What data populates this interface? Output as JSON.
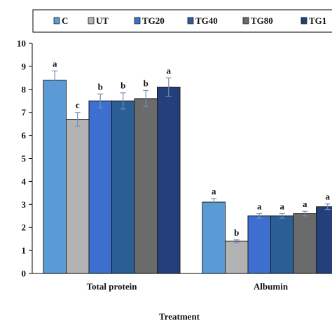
{
  "chart_data": {
    "type": "bar",
    "xlabel": "Treatment",
    "ylabel": "",
    "ylim": [
      0,
      10
    ],
    "yticks": [
      0,
      1,
      2,
      3,
      4,
      5,
      6,
      7,
      8,
      9,
      10
    ],
    "categories": [
      "Total protein",
      "Albumin"
    ],
    "legend_position": "top",
    "grid": false,
    "series": [
      {
        "name": "C",
        "color": "#5b9bd5",
        "values": [
          8.4,
          3.1
        ],
        "errors": [
          0.4,
          0.15
        ],
        "letters": [
          "a",
          "a"
        ]
      },
      {
        "name": "UT",
        "color": "#b3b3b3",
        "values": [
          6.7,
          1.4
        ],
        "errors": [
          0.3,
          0.06
        ],
        "letters": [
          "c",
          "b"
        ]
      },
      {
        "name": "TG20",
        "color": "#3d6fd1",
        "values": [
          7.5,
          2.5
        ],
        "errors": [
          0.3,
          0.1
        ],
        "letters": [
          "b",
          "a"
        ]
      },
      {
        "name": "TG40",
        "color": "#2a5e95",
        "values": [
          7.5,
          2.5
        ],
        "errors": [
          0.35,
          0.1
        ],
        "letters": [
          "b",
          "a"
        ]
      },
      {
        "name": "TG80",
        "color": "#6b6b6b",
        "values": [
          7.6,
          2.6
        ],
        "errors": [
          0.35,
          0.1
        ],
        "letters": [
          "b",
          "a"
        ]
      },
      {
        "name": "TG1",
        "color": "#253f7a",
        "values": [
          8.1,
          2.9
        ],
        "errors": [
          0.4,
          0.12
        ],
        "letters": [
          "a",
          "a"
        ]
      }
    ]
  }
}
